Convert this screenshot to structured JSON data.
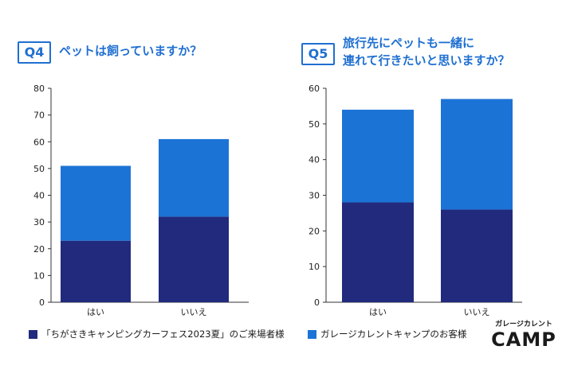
{
  "charts": [
    {
      "badge": "Q4",
      "title_lines": [
        "ペットは飼っていますか？"
      ]
    },
    {
      "badge": "Q5",
      "title_lines": [
        "旅行先にペットも一緒に",
        "連れて行きたいと思いますか？"
      ]
    }
  ],
  "colors": {
    "dark": "#212a7d",
    "light": "#1c73d6",
    "accent": "#1f6fd1"
  },
  "legend": {
    "dark_label": "「ちがさきキャンピングカーフェス2023夏」のご来場者様",
    "light_label": "ガレージカレントキャンプのお客様"
  },
  "logo": {
    "line1": "ガレージカレント",
    "line2": "CAMP"
  },
  "chart_data": [
    {
      "type": "bar",
      "stacked": true,
      "categories": [
        "はい",
        "いいえ"
      ],
      "series": [
        {
          "name": "「ちがさきキャンピングカーフェス2023夏」のご来場者様",
          "values": [
            23,
            32
          ]
        },
        {
          "name": "ガレージカレントキャンプのお客様",
          "values": [
            28,
            29
          ]
        }
      ],
      "ylim": [
        0,
        80
      ],
      "yticks": [
        0,
        10,
        20,
        30,
        40,
        50,
        60,
        70,
        80
      ]
    },
    {
      "type": "bar",
      "stacked": true,
      "categories": [
        "はい",
        "いいえ"
      ],
      "series": [
        {
          "name": "「ちがさきキャンピングカーフェス2023夏」のご来場者様",
          "values": [
            28,
            26
          ]
        },
        {
          "name": "ガレージカレントキャンプのお客様",
          "values": [
            26,
            31
          ]
        }
      ],
      "ylim": [
        0,
        60
      ],
      "yticks": [
        0,
        10,
        20,
        30,
        40,
        50,
        60
      ]
    }
  ]
}
